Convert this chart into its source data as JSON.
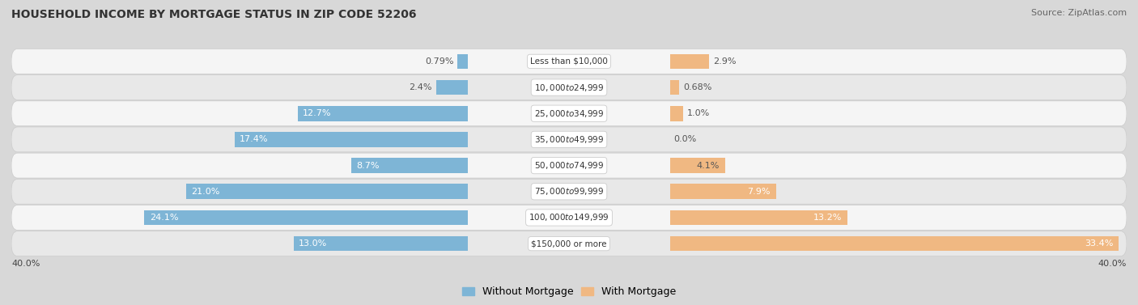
{
  "title": "HOUSEHOLD INCOME BY MORTGAGE STATUS IN ZIP CODE 52206",
  "source": "Source: ZipAtlas.com",
  "categories": [
    "Less than $10,000",
    "$10,000 to $24,999",
    "$25,000 to $34,999",
    "$35,000 to $49,999",
    "$50,000 to $74,999",
    "$75,000 to $99,999",
    "$100,000 to $149,999",
    "$150,000 or more"
  ],
  "without_mortgage": [
    0.79,
    2.4,
    12.7,
    17.4,
    8.7,
    21.0,
    24.1,
    13.0
  ],
  "with_mortgage": [
    2.9,
    0.68,
    1.0,
    0.0,
    4.1,
    7.9,
    13.2,
    33.4
  ],
  "without_mortgage_labels": [
    "0.79%",
    "2.4%",
    "12.7%",
    "17.4%",
    "8.7%",
    "21.0%",
    "24.1%",
    "13.0%"
  ],
  "with_mortgage_labels": [
    "2.9%",
    "0.68%",
    "1.0%",
    "0.0%",
    "4.1%",
    "7.9%",
    "13.2%",
    "33.4%"
  ],
  "color_without": "#7EB5D6",
  "color_with": "#F0B882",
  "xlim": 40.0,
  "axis_label_left": "40.0%",
  "axis_label_right": "40.0%",
  "legend_without": "Without Mortgage",
  "legend_with": "With Mortgage",
  "title_fontsize": 10,
  "source_fontsize": 8,
  "label_fontsize": 8,
  "cat_fontsize": 7.5,
  "legend_fontsize": 9,
  "bar_height": 0.58,
  "row_colors": [
    "#f5f5f5",
    "#e8e8e8"
  ],
  "bg_color": "#d8d8d8",
  "label_color_inside": "#ffffff",
  "label_color_outside": "#555555"
}
